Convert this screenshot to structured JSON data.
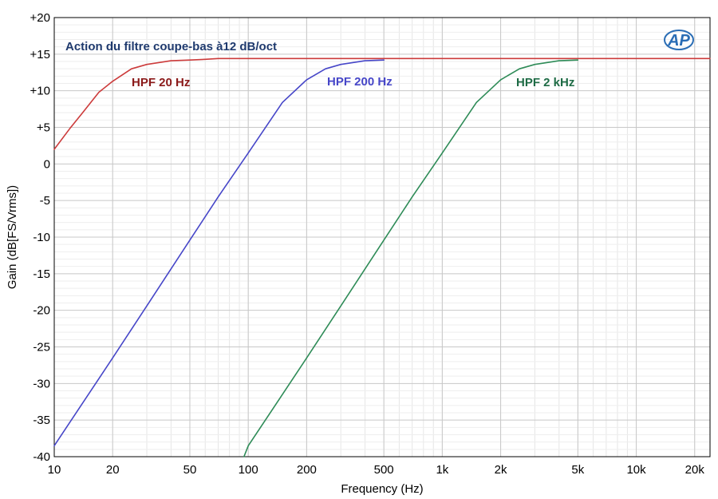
{
  "chart_data": {
    "type": "line",
    "title": "Action du filtre coupe-bas à12 dB/oct",
    "xlabel": "Frequency (Hz)",
    "ylabel": "Gain (dB[FS/Vrms])",
    "xscale": "log",
    "xlim": [
      10,
      24000
    ],
    "ylim": [
      -40,
      20
    ],
    "grid": true,
    "x_ticks": [
      {
        "value": 10,
        "label": "10"
      },
      {
        "value": 20,
        "label": "20"
      },
      {
        "value": 50,
        "label": "50"
      },
      {
        "value": 100,
        "label": "100"
      },
      {
        "value": 200,
        "label": "200"
      },
      {
        "value": 500,
        "label": "500"
      },
      {
        "value": 1000,
        "label": "1k"
      },
      {
        "value": 2000,
        "label": "2k"
      },
      {
        "value": 5000,
        "label": "5k"
      },
      {
        "value": 10000,
        "label": "10k"
      },
      {
        "value": 20000,
        "label": "20k"
      }
    ],
    "y_ticks": [
      {
        "value": 20,
        "label": "+20"
      },
      {
        "value": 15,
        "label": "+15"
      },
      {
        "value": 10,
        "label": "+10"
      },
      {
        "value": 5,
        "label": "+5"
      },
      {
        "value": 0,
        "label": "0"
      },
      {
        "value": -5,
        "label": "-5"
      },
      {
        "value": -10,
        "label": "-10"
      },
      {
        "value": -15,
        "label": "-15"
      },
      {
        "value": -20,
        "label": "-20"
      },
      {
        "value": -25,
        "label": "-25"
      },
      {
        "value": -30,
        "label": "-30"
      },
      {
        "value": -35,
        "label": "-35"
      },
      {
        "value": -40,
        "label": "-40"
      }
    ],
    "series": [
      {
        "name": "HPF 20 Hz",
        "color": "#cc3b3b",
        "label_color": "#8b1a1a",
        "x": [
          10,
          12,
          14,
          17,
          20,
          25,
          30,
          40,
          50,
          60,
          70,
          100,
          200,
          500,
          1000,
          2000,
          5000,
          10000,
          20000,
          24000
        ],
        "y": [
          2.0,
          4.8,
          7.0,
          9.8,
          11.3,
          13.0,
          13.6,
          14.1,
          14.2,
          14.3,
          14.4,
          14.4,
          14.4,
          14.4,
          14.4,
          14.4,
          14.4,
          14.4,
          14.4,
          14.4
        ]
      },
      {
        "name": "HPF 200 Hz",
        "color": "#4646c8",
        "label_color": "#4646c8",
        "x": [
          10,
          20,
          30,
          50,
          70,
          100,
          120,
          150,
          200,
          250,
          300,
          400,
          500
        ],
        "y": [
          -38.5,
          -26.5,
          -19.4,
          -10.4,
          -4.5,
          1.5,
          4.6,
          8.4,
          11.5,
          13.0,
          13.6,
          14.1,
          14.2
        ]
      },
      {
        "name": "HPF 2 kHz",
        "color": "#2e8b57",
        "label_color": "#1e6b45",
        "x": [
          95,
          100,
          150,
          200,
          300,
          500,
          700,
          1000,
          1500,
          2000,
          2500,
          3000,
          4000,
          5000
        ],
        "y": [
          -40.0,
          -38.5,
          -31.5,
          -26.5,
          -19.4,
          -10.4,
          -4.5,
          1.5,
          8.4,
          11.5,
          13.0,
          13.6,
          14.1,
          14.2
        ]
      }
    ]
  },
  "logo": {
    "text": "AP",
    "color": "#2a6db5"
  }
}
